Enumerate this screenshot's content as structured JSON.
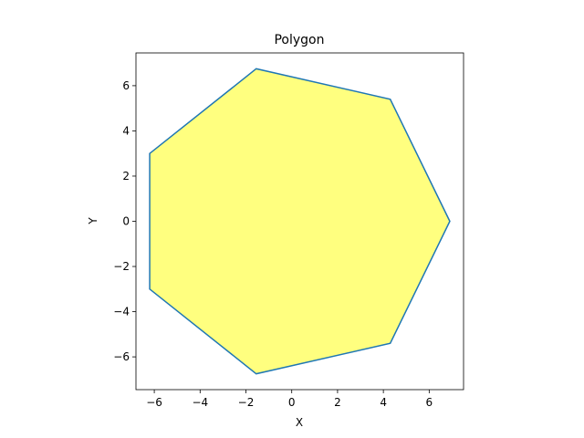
{
  "chart_data": {
    "type": "area",
    "title": "Polygon",
    "xlabel": "X",
    "ylabel": "Y",
    "xlim": [
      -6.8,
      7.5
    ],
    "ylim": [
      -7.45,
      7.45
    ],
    "xticks": [
      -6,
      -4,
      -2,
      0,
      2,
      4,
      6
    ],
    "yticks": [
      -6,
      -4,
      -2,
      0,
      2,
      4,
      6
    ],
    "grid": false,
    "series": [
      {
        "points": [
          {
            "x": 6.9,
            "y": 0.0
          },
          {
            "x": 4.3,
            "y": 5.4
          },
          {
            "x": -1.55,
            "y": 6.75
          },
          {
            "x": -6.2,
            "y": 3.0
          },
          {
            "x": -6.2,
            "y": -3.0
          },
          {
            "x": -1.55,
            "y": -6.75
          },
          {
            "x": 4.3,
            "y": -5.4
          }
        ],
        "fill_color": "#ffff7f",
        "line_color": "#1f77b4"
      }
    ]
  }
}
